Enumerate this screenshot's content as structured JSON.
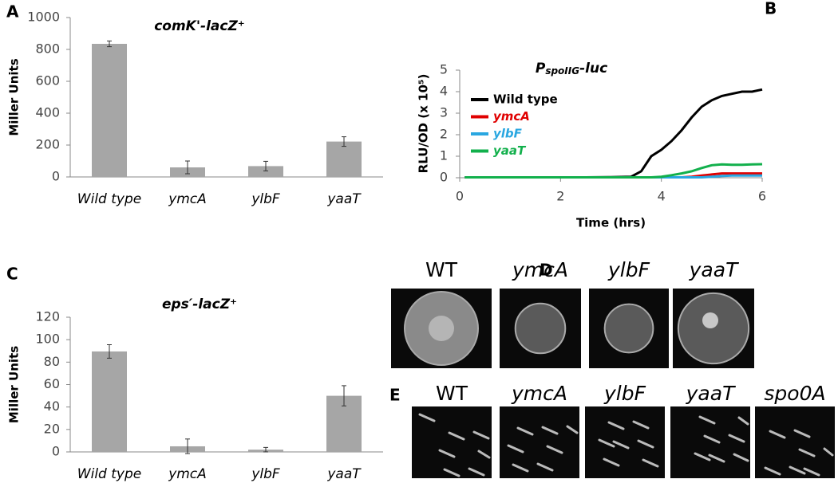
{
  "chart_data": [
    {
      "panel": "A",
      "type": "bar",
      "title": "comK'-lacZ⁺",
      "ylabel": "Miller Units",
      "categories": [
        "Wild type",
        "ymcA",
        "ylbF",
        "yaaT"
      ],
      "values": [
        835,
        60,
        68,
        222
      ],
      "errors": [
        18,
        40,
        30,
        30
      ],
      "color": "#a6a6a6",
      "ylim": [
        0,
        1000
      ],
      "yticks": [
        0,
        200,
        400,
        600,
        800,
        1000
      ]
    },
    {
      "panel": "B",
      "type": "line",
      "title": [
        "P",
        "spoIIG",
        "-luc"
      ],
      "xlabel": "Time (hrs)",
      "ylabel": "RLU/OD (x 10⁵)",
      "x": [
        0.1,
        0.5,
        1,
        1.5,
        2,
        2.5,
        3,
        3.4,
        3.6,
        3.8,
        4.0,
        4.2,
        4.4,
        4.6,
        4.8,
        5.0,
        5.2,
        5.4,
        5.6,
        5.8,
        6.0
      ],
      "series": [
        {
          "name": "Wild type",
          "color": "#000000",
          "values": [
            0.02,
            0.02,
            0.02,
            0.02,
            0.02,
            0.02,
            0.03,
            0.05,
            0.3,
            1.0,
            1.3,
            1.7,
            2.2,
            2.8,
            3.3,
            3.6,
            3.8,
            3.9,
            4.0,
            4.0,
            4.1
          ]
        },
        {
          "name": "ymcA",
          "color": "#e00000",
          "values": [
            0.02,
            0.02,
            0.02,
            0.02,
            0.02,
            0.02,
            0.02,
            0.02,
            0.02,
            0.02,
            0.02,
            0.02,
            0.02,
            0.05,
            0.1,
            0.15,
            0.2,
            0.2,
            0.2,
            0.2,
            0.2
          ]
        },
        {
          "name": "ylbF",
          "color": "#2aa7e1",
          "values": [
            0.02,
            0.02,
            0.02,
            0.02,
            0.02,
            0.02,
            0.02,
            0.02,
            0.02,
            0.02,
            0.02,
            0.02,
            0.02,
            0.02,
            0.02,
            0.05,
            0.08,
            0.1,
            0.1,
            0.1,
            0.1
          ]
        },
        {
          "name": "yaaT",
          "color": "#12b04c",
          "values": [
            0.02,
            0.02,
            0.02,
            0.02,
            0.02,
            0.02,
            0.02,
            0.02,
            0.02,
            0.02,
            0.05,
            0.12,
            0.2,
            0.3,
            0.45,
            0.58,
            0.62,
            0.6,
            0.6,
            0.62,
            0.63
          ]
        }
      ],
      "xlim": [
        0,
        6
      ],
      "xticks": [
        0,
        2,
        4,
        6
      ],
      "ylim": [
        0,
        5
      ],
      "yticks": [
        0,
        1,
        2,
        3,
        4,
        5
      ],
      "legend": "upper-left"
    },
    {
      "panel": "C",
      "type": "bar",
      "title": "eps′-lacZ⁺",
      "ylabel": "Miller Units",
      "categories": [
        "Wild type",
        "ymcA",
        "ylbF",
        "yaaT"
      ],
      "values": [
        89.5,
        5,
        2,
        50
      ],
      "errors": [
        6,
        6.5,
        2,
        9
      ],
      "color": "#a6a6a6",
      "ylim": [
        0,
        120
      ],
      "yticks": [
        0,
        20,
        40,
        60,
        80,
        100,
        120
      ]
    }
  ],
  "micrographs": [
    {
      "panel": "D",
      "labels": [
        "WT",
        "ymcA",
        "ylbF",
        "yaaT"
      ]
    },
    {
      "panel": "E",
      "labels": [
        "WT",
        "ymcA",
        "ylbF",
        "yaaT",
        "spo0A"
      ]
    }
  ]
}
